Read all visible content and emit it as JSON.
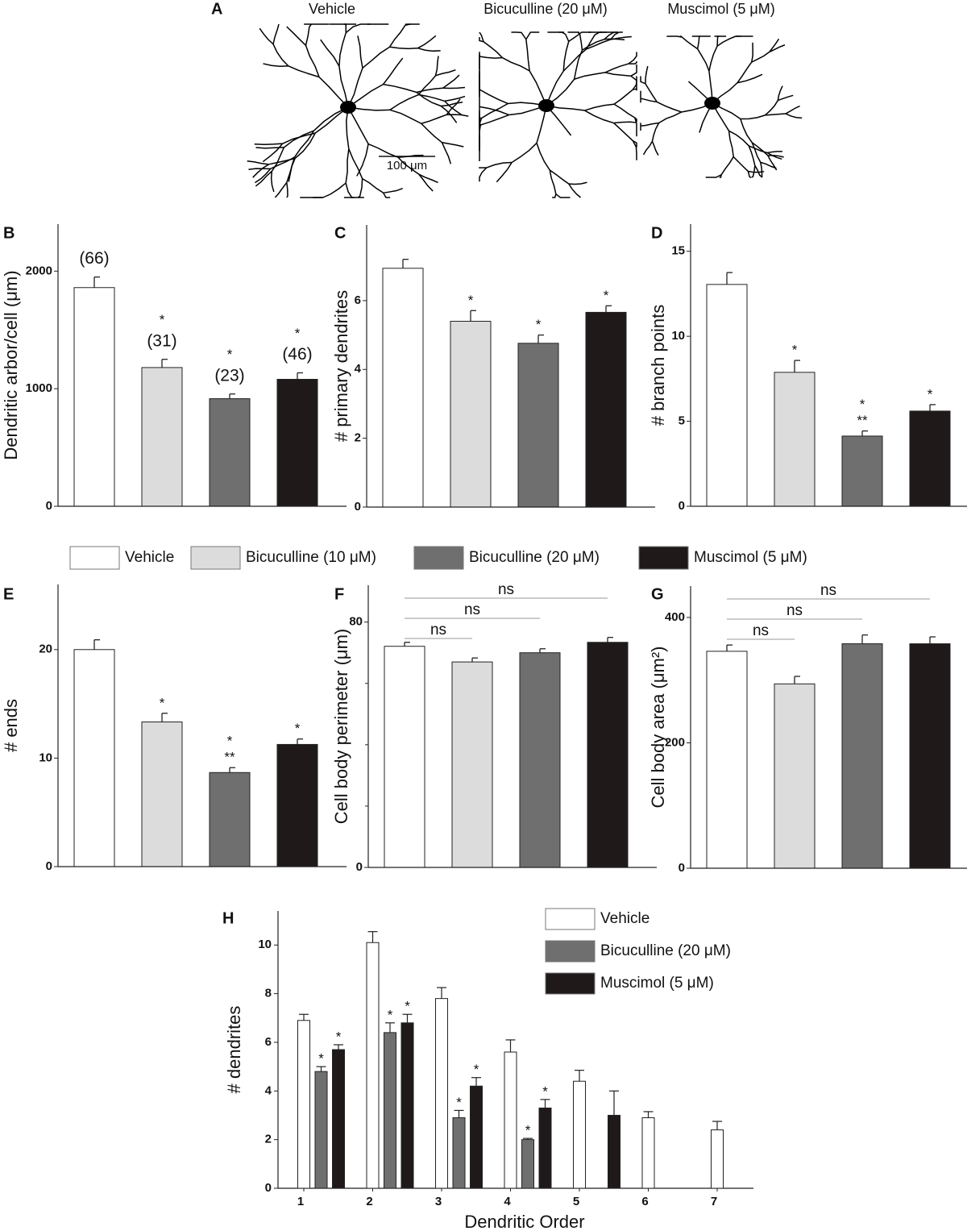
{
  "panel_a": {
    "panel": "A",
    "cells": [
      {
        "title": "Vehicle"
      },
      {
        "title": "Bicuculline (20 μM)"
      },
      {
        "title": "Muscimol (5 μM)"
      }
    ],
    "scale_bar": "100 μm"
  },
  "legend": {
    "series": [
      {
        "name": "Vehicle",
        "color": "#ffffff"
      },
      {
        "name": "Bicuculline (10 μM)",
        "color": "#dcdcdc"
      },
      {
        "name": "Bicuculline (20 μM)",
        "color": "#6f6f6f"
      },
      {
        "name": "Muscimol (5 μM)",
        "color": "#1f1a19"
      }
    ]
  },
  "chart_data": [
    {
      "type": "bar",
      "panel": "B",
      "ylabel": "Dendritic arbor/cell (μm)",
      "values": [
        1860,
        1180,
        915,
        1080
      ],
      "errors": [
        90,
        70,
        40,
        55
      ],
      "ylim": [
        0,
        2400
      ],
      "yticks": [
        0,
        1000,
        2000
      ],
      "n_labels": [
        "(66)",
        "(31)",
        "(23)",
        "(46)"
      ],
      "marks": [
        [],
        [
          "*"
        ],
        [
          "*"
        ],
        [
          "*"
        ]
      ]
    },
    {
      "type": "bar",
      "panel": "C",
      "ylabel": "# primary dendrites",
      "values": [
        6.94,
        5.4,
        4.76,
        5.66
      ],
      "errors": [
        0.26,
        0.31,
        0.24,
        0.19
      ],
      "ylim": [
        0,
        8.2
      ],
      "yticks": [
        0,
        2,
        4,
        6
      ],
      "marks": [
        [],
        [
          "*"
        ],
        [
          "*"
        ],
        [
          "*"
        ]
      ]
    },
    {
      "type": "bar",
      "panel": "D",
      "ylabel": "# branch points",
      "values": [
        13.05,
        7.88,
        4.13,
        5.6
      ],
      "errors": [
        0.7,
        0.7,
        0.3,
        0.38
      ],
      "ylim": [
        0,
        16.6
      ],
      "yticks": [
        0,
        5,
        10,
        15
      ],
      "marks": [
        [],
        [
          "*"
        ],
        [
          "*",
          "**"
        ],
        [
          "*"
        ]
      ]
    },
    {
      "type": "bar",
      "panel": "E",
      "ylabel": "# ends",
      "values": [
        20.0,
        13.33,
        8.67,
        11.26
      ],
      "errors": [
        0.9,
        0.8,
        0.45,
        0.5
      ],
      "ylim": [
        0,
        26
      ],
      "yticks": [
        0,
        10,
        20
      ],
      "marks": [
        [],
        [
          "*"
        ],
        [
          "*",
          "**"
        ],
        [
          "*"
        ]
      ]
    },
    {
      "type": "bar",
      "panel": "F",
      "ylabel": "Cell body perimeter (μm)",
      "values": [
        72.1,
        67.0,
        70.0,
        73.4
      ],
      "errors": [
        1.3,
        1.3,
        1.3,
        1.6
      ],
      "ylim": [
        0,
        92
      ],
      "yticks": [
        0,
        80
      ],
      "yminor_ticks": [
        20,
        40,
        60
      ],
      "brackets": [
        {
          "label": "ns"
        },
        {
          "label": "ns"
        },
        {
          "label": "ns"
        }
      ]
    },
    {
      "type": "bar",
      "panel": "G",
      "ylabel": "Cell body area (μm²)",
      "values": [
        346,
        294,
        358,
        358
      ],
      "errors": [
        10,
        12,
        14,
        11
      ],
      "ylim": [
        0,
        450
      ],
      "yticks": [
        0,
        200,
        400
      ],
      "brackets": [
        {
          "label": "ns"
        },
        {
          "label": "ns"
        },
        {
          "label": "ns"
        }
      ]
    },
    {
      "type": "grouped_bar",
      "panel": "H",
      "ylabel": "# dendrites",
      "xlabel": "Dendritic Order",
      "categories": [
        "1",
        "2",
        "3",
        "4",
        "5",
        "6",
        "7"
      ],
      "ylim": [
        0,
        11.4
      ],
      "yticks": [
        0,
        2,
        4,
        6,
        8,
        10
      ],
      "series": [
        {
          "name": "Vehicle",
          "color": "#ffffff",
          "values": [
            6.9,
            10.1,
            7.8,
            5.6,
            4.4,
            2.9,
            2.4
          ],
          "errors": [
            0.25,
            0.45,
            0.45,
            0.5,
            0.45,
            0.25,
            0.35
          ],
          "marks": [
            null,
            null,
            null,
            null,
            null,
            null,
            null
          ]
        },
        {
          "name": "Bicuculline (20 μM)",
          "color": "#6f6f6f",
          "values": [
            4.8,
            6.4,
            2.9,
            2.0,
            null,
            null,
            null
          ],
          "errors": [
            0.2,
            0.4,
            0.3,
            0.05,
            null,
            null,
            null
          ],
          "marks": [
            "*",
            "*",
            "*",
            "*",
            null,
            null,
            null
          ]
        },
        {
          "name": "Muscimol (5 μM)",
          "color": "#1f1a19",
          "values": [
            5.7,
            6.8,
            4.2,
            3.3,
            3.0,
            null,
            null
          ],
          "errors": [
            0.2,
            0.35,
            0.35,
            0.35,
            1.0,
            null,
            null
          ],
          "marks": [
            "*",
            "*",
            "*",
            "*",
            null,
            null,
            null
          ]
        }
      ]
    }
  ]
}
